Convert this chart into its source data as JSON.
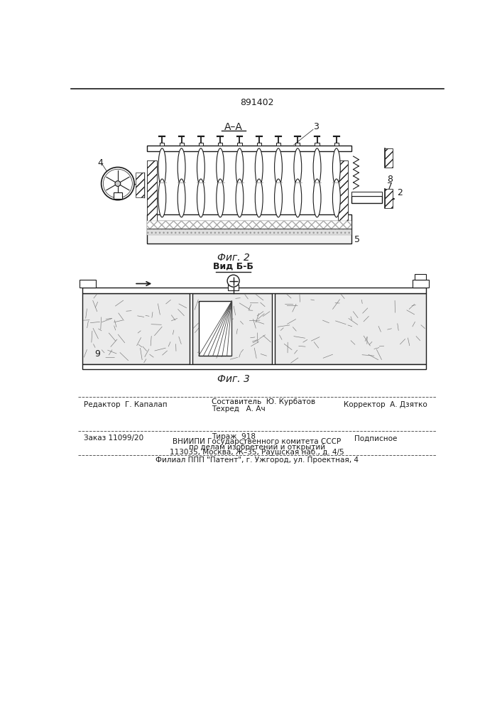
{
  "patent_number": "891402",
  "fig2_label": "Фиг. 2",
  "fig3_label": "Фиг. 3",
  "section_aa": "А–А",
  "section_bb": "Вид Б-Б",
  "bg_color": "#ffffff",
  "line_color": "#1a1a1a",
  "footer": {
    "line1_left": "Редактор  Г. Капалап",
    "line1_mid1": "Составитель  Ю. Курбатов",
    "line1_mid2": "Техред   А. Ач",
    "line1_right": "Корректор  А. Дзятко",
    "line2_left": "Заказ 11099/20",
    "line2_mid1": "Тираж  918",
    "line2_right": "Подписное",
    "line2_mid2": "ВНИИПИ Государственного комитета СССР",
    "line2_mid3": "по делам изобретений и открытий",
    "line2_mid4": "113035, Москва, Ж–35, Раушская наб., д. 4/5",
    "line3": "Филиал ППП \"Патент\", г. Ужгород, ул. Проектная, 4"
  }
}
